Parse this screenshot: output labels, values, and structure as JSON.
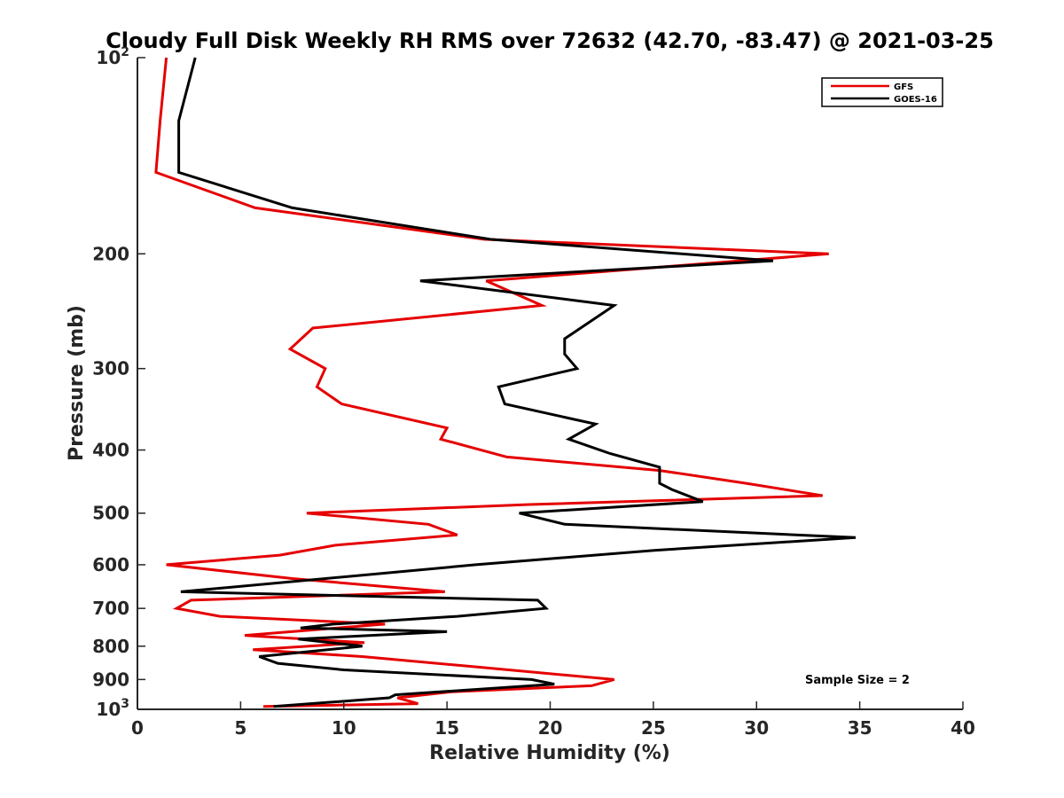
{
  "chart_data": {
    "type": "line",
    "title": "Cloudy Full Disk Weekly RH RMS over 72632 (42.70, -83.47) @ 2021-03-25",
    "xlabel": "Relative Humidity (%)",
    "ylabel": "Pressure (mb)",
    "xlim": [
      0,
      40
    ],
    "ylim": [
      100,
      1000
    ],
    "y_scale": "log",
    "y_reversed": true,
    "x_ticks": [
      "0",
      "5",
      "10",
      "15",
      "20",
      "25",
      "30",
      "35",
      "40"
    ],
    "y_ticks": [
      {
        "value": 100,
        "base": "10",
        "exp": "2"
      },
      {
        "value": 200,
        "label": "200"
      },
      {
        "value": 300,
        "label": "300"
      },
      {
        "value": 400,
        "label": "400"
      },
      {
        "value": 500,
        "label": "500"
      },
      {
        "value": 600,
        "label": "600"
      },
      {
        "value": 700,
        "label": "700"
      },
      {
        "value": 800,
        "label": "800"
      },
      {
        "value": 900,
        "label": "900"
      },
      {
        "value": 1000,
        "base": "10",
        "exp": "3"
      }
    ],
    "grid": false,
    "legend_position": "top-right",
    "annotation": "Sample Size = 2",
    "series": [
      {
        "name": "GFS",
        "color": "#e50000",
        "points": [
          {
            "x": 1.4,
            "y": 100
          },
          {
            "x": 1.1,
            "y": 125
          },
          {
            "x": 0.9,
            "y": 150
          },
          {
            "x": 5.7,
            "y": 170
          },
          {
            "x": 16.8,
            "y": 190
          },
          {
            "x": 33.5,
            "y": 200
          },
          {
            "x": 16.9,
            "y": 220
          },
          {
            "x": 19.6,
            "y": 240
          },
          {
            "x": 8.5,
            "y": 260
          },
          {
            "x": 7.4,
            "y": 280
          },
          {
            "x": 9.1,
            "y": 300
          },
          {
            "x": 8.7,
            "y": 320
          },
          {
            "x": 9.9,
            "y": 340
          },
          {
            "x": 15.0,
            "y": 370
          },
          {
            "x": 14.7,
            "y": 385
          },
          {
            "x": 17.9,
            "y": 410
          },
          {
            "x": 25.3,
            "y": 430
          },
          {
            "x": 29.5,
            "y": 450
          },
          {
            "x": 33.2,
            "y": 470
          },
          {
            "x": 19.0,
            "y": 485
          },
          {
            "x": 8.2,
            "y": 500
          },
          {
            "x": 14.1,
            "y": 520
          },
          {
            "x": 15.5,
            "y": 540
          },
          {
            "x": 9.6,
            "y": 560
          },
          {
            "x": 6.9,
            "y": 580
          },
          {
            "x": 1.4,
            "y": 600
          },
          {
            "x": 7.5,
            "y": 630
          },
          {
            "x": 14.9,
            "y": 660
          },
          {
            "x": 2.6,
            "y": 680
          },
          {
            "x": 1.9,
            "y": 700
          },
          {
            "x": 4.0,
            "y": 720
          },
          {
            "x": 12.0,
            "y": 740
          },
          {
            "x": 5.2,
            "y": 770
          },
          {
            "x": 11.0,
            "y": 790
          },
          {
            "x": 5.6,
            "y": 810
          },
          {
            "x": 10.9,
            "y": 830
          },
          {
            "x": 16.3,
            "y": 860
          },
          {
            "x": 23.1,
            "y": 900
          },
          {
            "x": 22.0,
            "y": 920
          },
          {
            "x": 15.2,
            "y": 940
          },
          {
            "x": 12.6,
            "y": 960
          },
          {
            "x": 13.6,
            "y": 980
          },
          {
            "x": 6.1,
            "y": 990
          }
        ]
      },
      {
        "name": "GOES-16",
        "color": "#000000",
        "points": [
          {
            "x": 2.8,
            "y": 100
          },
          {
            "x": 2.0,
            "y": 125
          },
          {
            "x": 2.0,
            "y": 150
          },
          {
            "x": 7.5,
            "y": 170
          },
          {
            "x": 17.1,
            "y": 190
          },
          {
            "x": 30.8,
            "y": 205
          },
          {
            "x": 13.7,
            "y": 220
          },
          {
            "x": 23.1,
            "y": 240
          },
          {
            "x": 20.7,
            "y": 270
          },
          {
            "x": 20.7,
            "y": 285
          },
          {
            "x": 21.3,
            "y": 300
          },
          {
            "x": 17.5,
            "y": 320
          },
          {
            "x": 17.8,
            "y": 340
          },
          {
            "x": 22.2,
            "y": 365
          },
          {
            "x": 20.9,
            "y": 385
          },
          {
            "x": 22.9,
            "y": 405
          },
          {
            "x": 25.3,
            "y": 425
          },
          {
            "x": 25.3,
            "y": 450
          },
          {
            "x": 25.9,
            "y": 460
          },
          {
            "x": 27.4,
            "y": 480
          },
          {
            "x": 18.5,
            "y": 500
          },
          {
            "x": 20.7,
            "y": 520
          },
          {
            "x": 34.8,
            "y": 545
          },
          {
            "x": 25.1,
            "y": 570
          },
          {
            "x": 16.4,
            "y": 600
          },
          {
            "x": 10.3,
            "y": 625
          },
          {
            "x": 2.1,
            "y": 660
          },
          {
            "x": 19.4,
            "y": 680
          },
          {
            "x": 19.8,
            "y": 700
          },
          {
            "x": 15.5,
            "y": 720
          },
          {
            "x": 9.5,
            "y": 740
          },
          {
            "x": 7.9,
            "y": 750
          },
          {
            "x": 15.0,
            "y": 760
          },
          {
            "x": 7.8,
            "y": 780
          },
          {
            "x": 10.9,
            "y": 800
          },
          {
            "x": 5.9,
            "y": 830
          },
          {
            "x": 6.8,
            "y": 850
          },
          {
            "x": 10.0,
            "y": 870
          },
          {
            "x": 19.1,
            "y": 900
          },
          {
            "x": 20.2,
            "y": 915
          },
          {
            "x": 12.5,
            "y": 950
          },
          {
            "x": 12.2,
            "y": 960
          },
          {
            "x": 6.6,
            "y": 990
          }
        ]
      }
    ]
  }
}
